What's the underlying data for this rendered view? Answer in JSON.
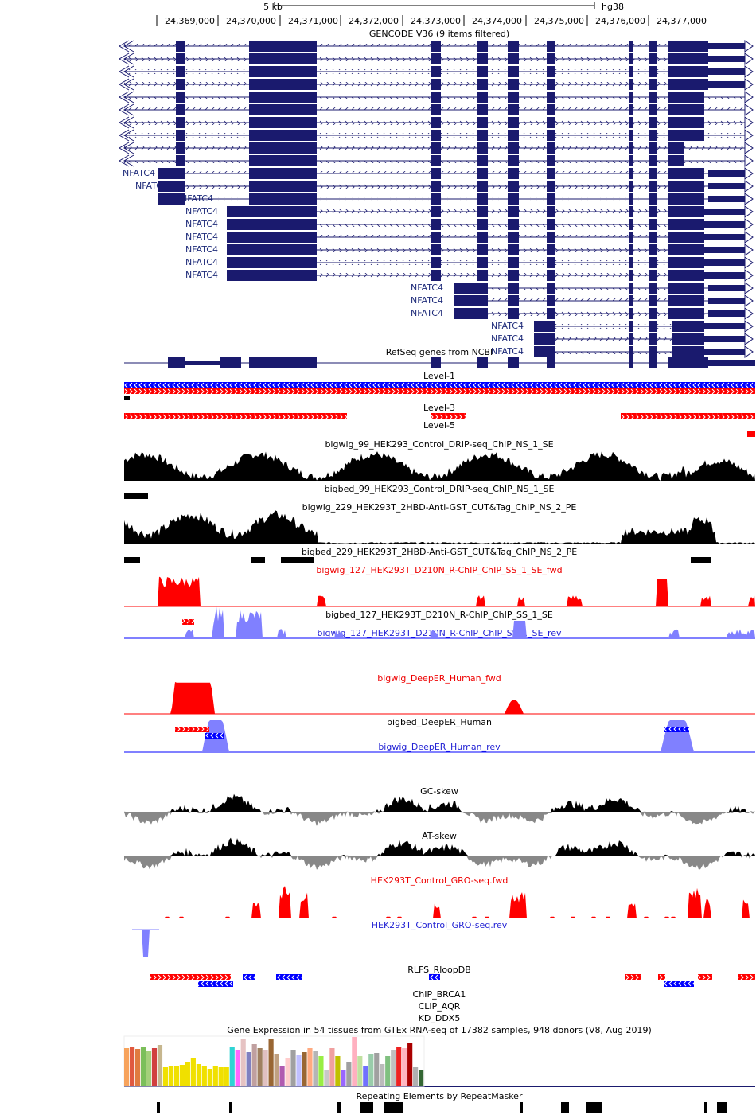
{
  "assembly": "hg38",
  "scale": {
    "label": "5 kb"
  },
  "ruler": {
    "ticks": [
      "24,369,000",
      "24,370,000",
      "24,371,000",
      "24,372,000",
      "24,373,000",
      "24,374,000",
      "24,375,000",
      "24,376,000",
      "24,377,000"
    ]
  },
  "gene_label": "NFATC4",
  "tracks": {
    "gencode": "GENCODE V36 (9 items filtered)",
    "refseq": "RefSeq genes from NCBI",
    "level1": "Level-1",
    "level3": "Level-3",
    "level5": "Level-5",
    "bw99": "bigwig_99_HEK293_Control_DRIP-seq_ChIP_NS_1_SE",
    "bb99": "bigbed_99_HEK293_Control_DRIP-seq_ChIP_NS_1_SE",
    "bw229": "bigwig_229_HEK293T_2HBD-Anti-GST_CUT&Tag_ChIP_NS_2_PE",
    "bb229": "bigbed_229_HEK293T_2HBD-Anti-GST_CUT&Tag_ChIP_NS_2_PE",
    "bw127fwd": "bigwig_127_HEK293T_D210N_R-ChIP_ChIP_SS_1_SE_fwd",
    "bb127": "bigbed_127_HEK293T_D210N_R-ChIP_ChIP_SS_1_SE",
    "bw127rev": "bigwig_127_HEK293T_D210N_R-ChIP_ChIP_SS_1_SE_rev",
    "deeperfwd": "bigwig_DeepER_Human_fwd",
    "deeperbb": "bigbed_DeepER_Human",
    "deeperrev": "bigwig_DeepER_Human_rev",
    "gcskew": "GC-skew",
    "atskew": "AT-skew",
    "grofwd": "HEK293T_Control_GRO-seq.fwd",
    "grorev": "HEK293T_Control_GRO-seq.rev",
    "rlfs": "RLFS_RloopDB",
    "brca1": "ChIP_BRCA1",
    "aqr": "CLIP_AQR",
    "ddx5": "KD_DDX5",
    "gtex": "Gene Expression in 54 tissues from GTEx RNA-seq of 17382 samples, 948 donors (V8, Aug 2019)",
    "rmsk": "Repeating Elements by RepeatMasker"
  },
  "colors": {
    "gene": "#1a1a6e",
    "fwd": "#ff0000",
    "rev": "#8080ff",
    "level_blue": "#0000ff",
    "level_red": "#ff0000",
    "signal": "#000000",
    "gc_neg": "#888888"
  }
}
